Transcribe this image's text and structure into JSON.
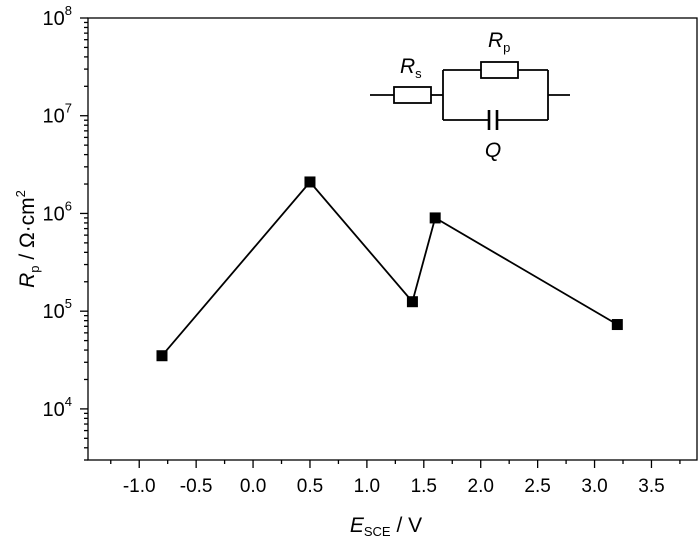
{
  "chart_data": {
    "type": "line",
    "title": "",
    "xlabel": {
      "main": "E",
      "sub": "SCE",
      "unit": " / V"
    },
    "ylabel": {
      "main": "R",
      "sub": "p",
      "unit": " / Ω·cm",
      "sup": "2"
    },
    "x": [
      -0.8,
      0.5,
      1.4,
      1.6,
      3.2
    ],
    "series": [
      {
        "values": [
          35000,
          2100000,
          125000,
          900000,
          73000
        ]
      }
    ],
    "xlim": [
      -1.45,
      3.9
    ],
    "ylim": [
      3000,
      100000000
    ],
    "yscale": "log",
    "x_ticks": [
      "-1.0",
      "-0.5",
      "0.0",
      "0.5",
      "1.0",
      "1.5",
      "2.0",
      "2.5",
      "3.0",
      "3.5"
    ],
    "y_ticks": [
      {
        "base": "10",
        "exp": "4"
      },
      {
        "base": "10",
        "exp": "5"
      },
      {
        "base": "10",
        "exp": "6"
      },
      {
        "base": "10",
        "exp": "7"
      },
      {
        "base": "10",
        "exp": "8"
      }
    ],
    "grid": false,
    "marker": "square",
    "inset_circuit": {
      "rs_label": {
        "main": "R",
        "sub": "s"
      },
      "rp_label": {
        "main": "R",
        "sub": "p"
      },
      "q_label": "Q"
    }
  },
  "colors": {
    "line": "#000000",
    "marker": "#000000",
    "axis": "#000000"
  }
}
